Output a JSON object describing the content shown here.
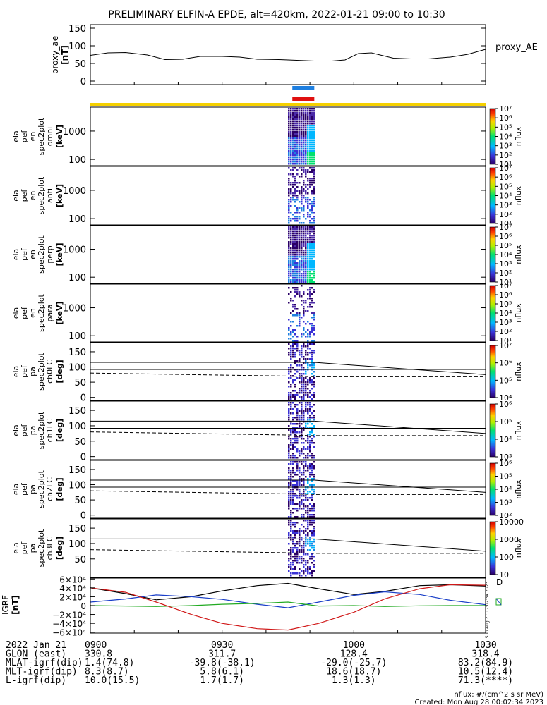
{
  "title": "PRELIMINARY ELFIN-A EPDE, alt=420km, 2022-01-21 09:00 to 10:30",
  "time_ticks": [
    "0900",
    "0930",
    "1000",
    "1030"
  ],
  "panels": {
    "proxy_ae": {
      "ylabel": "proxy_ae\n[nT]",
      "legend": "proxy_AE",
      "ticks": [
        "150",
        "100",
        "50",
        "0"
      ]
    },
    "energy_panels": [
      {
        "ylabel": [
          "ela",
          "pef",
          "en",
          "spec2plot",
          "omni",
          "[keV]"
        ],
        "ticks": [
          "1000",
          "100"
        ],
        "cb_label": "nflux",
        "cb_ticks": [
          "10⁷",
          "10⁶",
          "10⁵",
          "10⁴",
          "10³",
          "10²",
          "10¹"
        ]
      },
      {
        "ylabel": [
          "ela",
          "pef",
          "en",
          "spec2plot",
          "anti",
          "[keV]"
        ],
        "ticks": [
          "1000",
          "100"
        ],
        "cb_label": "nflux",
        "cb_ticks": [
          "10⁷",
          "10⁶",
          "10⁵",
          "10⁴",
          "10³",
          "10²",
          "10¹"
        ]
      },
      {
        "ylabel": [
          "ela",
          "pef",
          "en",
          "spec2plot",
          "perp",
          "[keV]"
        ],
        "ticks": [
          "1000",
          "100"
        ],
        "cb_label": "nflux",
        "cb_ticks": [
          "10⁷",
          "10⁶",
          "10⁵",
          "10⁴",
          "10³",
          "10²",
          "10¹"
        ]
      },
      {
        "ylabel": [
          "ela",
          "pef",
          "en",
          "spec2plot",
          "para",
          "[keV]"
        ],
        "ticks": [
          "1000",
          "100"
        ],
        "cb_label": "nflux",
        "cb_ticks": [
          "10⁷",
          "10⁶",
          "10⁵",
          "10⁴",
          "10³",
          "10²",
          "10¹"
        ]
      }
    ],
    "pa_panels": [
      {
        "ylabel": [
          "ela",
          "pef",
          "pa",
          "spec2plot",
          "ch0LC",
          "[deg]"
        ],
        "ticks": [
          "150",
          "100",
          "50",
          "0"
        ],
        "cb_label": "nflux",
        "cb_ticks": [
          "10⁷",
          "10⁶",
          "10⁵",
          "10⁴"
        ]
      },
      {
        "ylabel": [
          "ela",
          "pef",
          "pa",
          "spec2plot",
          "ch1LC",
          "[deg]"
        ],
        "ticks": [
          "150",
          "100",
          "50",
          "0"
        ],
        "cb_label": "nflux",
        "cb_ticks": [
          "10⁶",
          "10⁵",
          "10⁴",
          "10³"
        ]
      },
      {
        "ylabel": [
          "ela",
          "pef",
          "pa",
          "spec2plot",
          "ch2LC",
          "[deg]"
        ],
        "ticks": [
          "150",
          "100",
          "50",
          "0"
        ],
        "cb_label": "nflux",
        "cb_ticks": [
          "10⁶",
          "10⁵",
          "10⁴",
          "10³",
          "10²"
        ]
      },
      {
        "ylabel": [
          "ela",
          "pef",
          "pa",
          "spec2plot",
          "ch3LC",
          "[deg]"
        ],
        "ticks": [
          "150",
          "100",
          "50"
        ],
        "cb_label": "nflux",
        "cb_ticks": [
          "10000",
          "1000",
          "100",
          "10"
        ]
      }
    ],
    "igrf": {
      "ylabel": "IGRF\n[nT]",
      "ticks": [
        "6×10⁴",
        "4×10⁴",
        "2×10⁴",
        "0",
        "−2×10⁴",
        "−4×10⁴",
        "−6×10⁴"
      ],
      "legend_d": "D"
    }
  },
  "footer": {
    "rows": [
      [
        "2022 Jan 21",
        "0900",
        "0930",
        "1000",
        "1030"
      ],
      [
        "GLON (east)",
        "330.8",
        "311.7",
        "128.4",
        "318.4"
      ],
      [
        "MLAT-igrf(dip)",
        "1.4(74.8)",
        "-39.8(-38.1)",
        "-29.0(-25.7)",
        "83.2(84.9)"
      ],
      [
        "MLT-igrf(dip)",
        "8.3(8.7)",
        "5.8(6.1)",
        "18.6(18.7)",
        "10.5(12.4)"
      ],
      [
        "L-igrf(dip)",
        "10.0(15.5)",
        "1.7(1.7)",
        "1.3(1.3)",
        "71.3(****)"
      ]
    ],
    "units": "nflux: #/(cm^2 s sr MeV)",
    "created": "Created: Mon Aug 28 00:02:34 2023",
    "side_stamp": "Sun Aug 27 17:02:34 2023"
  },
  "colors": {
    "yellow_bar": "#f5d000",
    "blue_bar": "#1e7fe0",
    "red_bar": "#e01010",
    "igrf_black": "#000000",
    "igrf_blue": "#1a3fc8",
    "igrf_green": "#22aa22",
    "igrf_red": "#d01818"
  },
  "chart_data": [
    {
      "type": "line",
      "title": "",
      "ylabel": "proxy_ae [nT]",
      "xlabel": "",
      "ylim": [
        -10,
        160
      ],
      "x": [
        "09:00",
        "09:04",
        "09:08",
        "09:13",
        "09:17",
        "09:21",
        "09:25",
        "09:30",
        "09:34",
        "09:38",
        "09:43",
        "09:47",
        "09:51",
        "09:55",
        "09:58",
        "10:01",
        "10:04",
        "10:09",
        "10:13",
        "10:17",
        "10:22",
        "10:26",
        "10:30"
      ],
      "series": [
        {
          "name": "proxy_AE",
          "values": [
            73,
            80,
            81,
            74,
            61,
            62,
            70,
            70,
            68,
            62,
            61,
            59,
            57,
            57,
            60,
            78,
            80,
            65,
            63,
            63,
            68,
            76,
            90
          ]
        }
      ]
    },
    {
      "type": "line",
      "title": "",
      "ylabel": "IGRF [nT]",
      "xlabel": "",
      "ylim": [
        -62000,
        62000
      ],
      "x": [
        "09:00",
        "09:08",
        "09:15",
        "09:23",
        "09:30",
        "09:38",
        "09:45",
        "09:52",
        "10:00",
        "10:07",
        "10:15",
        "10:22",
        "10:30"
      ],
      "series": [
        {
          "values": [
            40000,
            27000,
            13000,
            20000,
            33000,
            45000,
            50000,
            38000,
            25000,
            32000,
            45000,
            47000,
            44000
          ]
        },
        {
          "values": [
            8000,
            15000,
            24000,
            20000,
            14000,
            3000,
            -5000,
            8000,
            23000,
            31000,
            25000,
            12000,
            2000
          ]
        },
        {
          "values": [
            0,
            -1000,
            -2000,
            0,
            3000,
            5000,
            8000,
            -1000,
            0,
            -2000,
            -500,
            0,
            0
          ]
        },
        {
          "values": [
            40000,
            30000,
            8000,
            -20000,
            -40000,
            -52000,
            -55000,
            -40000,
            -15000,
            15000,
            38000,
            47000,
            46000
          ]
        }
      ]
    },
    {
      "type": "heatmap",
      "title": "",
      "ylabel": "energy [keV]",
      "series": [
        {
          "name": "omni",
          "x_range": [
            "09:45",
            "09:51"
          ],
          "y_range_keV": [
            60,
            7000
          ]
        },
        {
          "name": "anti",
          "x_range": [
            "09:45",
            "09:51"
          ],
          "y_range_keV": [
            60,
            7000
          ]
        },
        {
          "name": "perp",
          "x_range": [
            "09:45",
            "09:51"
          ],
          "y_range_keV": [
            60,
            7000
          ]
        },
        {
          "name": "para",
          "x_range": [
            "09:45",
            "09:51"
          ],
          "y_range_keV": [
            60,
            7000
          ]
        }
      ]
    }
  ]
}
